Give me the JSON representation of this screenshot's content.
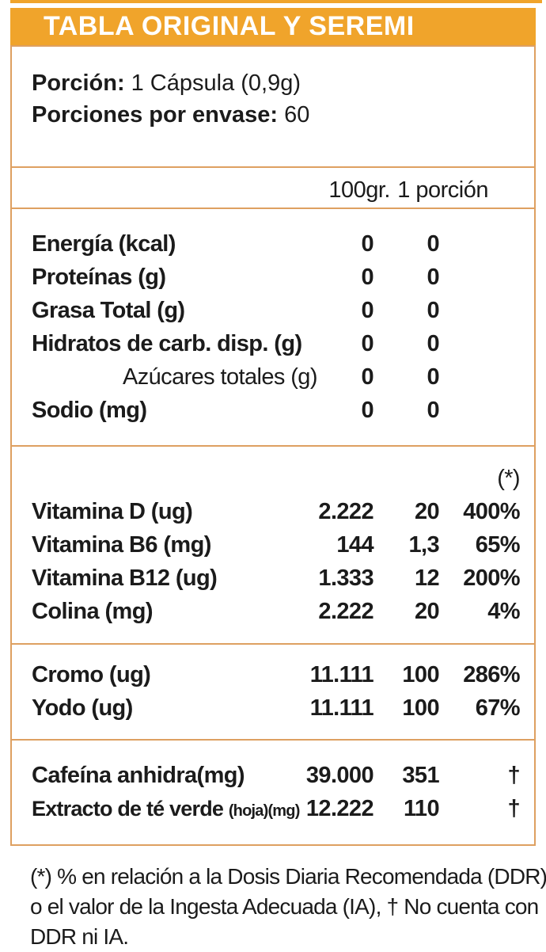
{
  "title": "TABLA ORIGINAL Y SEREMI",
  "serving": {
    "portion_label": "Porción:",
    "portion_value": "1 Cápsula (0,9g)",
    "servings_label": "Porciones por envase:",
    "servings_value": "60"
  },
  "columns": {
    "per_100": "100gr.",
    "per_serving": "1 porción",
    "ddr_marker": "(*)"
  },
  "sections": [
    {
      "rows": [
        {
          "label": "Energía (kcal)",
          "per100": "0",
          "portion": "0",
          "pct": ""
        },
        {
          "label": "Proteínas (g)",
          "per100": "0",
          "portion": "0",
          "pct": ""
        },
        {
          "label": "Grasa Total (g)",
          "per100": "0",
          "portion": "0",
          "pct": ""
        },
        {
          "label": "Hidratos de carb. disp. (g)",
          "per100": "0",
          "portion": "0",
          "pct": ""
        },
        {
          "label": "Azúcares totales (g)",
          "per100": "0",
          "portion": "0",
          "pct": "",
          "indent": true
        },
        {
          "label": "Sodio (mg)",
          "per100": "0",
          "portion": "0",
          "pct": ""
        }
      ]
    },
    {
      "rows": [
        {
          "label": "",
          "per100": "",
          "portion": "",
          "pct": "(*)",
          "marker": true
        },
        {
          "label": "Vitamina D (ug)",
          "per100": "2.222",
          "portion": "20",
          "pct": "400%"
        },
        {
          "label": "Vitamina B6 (mg)",
          "per100": "144",
          "portion": "1,3",
          "pct": "65%"
        },
        {
          "label": "Vitamina B12 (ug)",
          "per100": "1.333",
          "portion": "12",
          "pct": "200%"
        },
        {
          "label": "Colina (mg)",
          "per100": "2.222",
          "portion": "20",
          "pct": "4%"
        }
      ]
    },
    {
      "rows": [
        {
          "label": "Cromo (ug)",
          "per100": "11.111",
          "portion": "100",
          "pct": "286%"
        },
        {
          "label": "Yodo (ug)",
          "per100": "11.111",
          "portion": "100",
          "pct": "67%"
        }
      ]
    },
    {
      "rows": [
        {
          "label": "Cafeína anhidra(mg)",
          "per100": "39.000",
          "portion": "351",
          "pct": "†"
        },
        {
          "label": "Extracto de té verde ",
          "label_small": "(hoja)(mg)",
          "per100": "12.222",
          "portion": "110",
          "pct": "†",
          "small_label": true
        }
      ]
    }
  ],
  "footnote_lines": [
    "(*) % en relación a la Dosis Diaria Recomendada (DDR)",
    "o el valor de la Ingesta Adecuada (IA), † No cuenta con",
    "DDR ni IA."
  ],
  "colors": {
    "header_orange": "#F0A42B",
    "rule_orange": "#DEA061",
    "text": "#1B1B1B",
    "title_text": "#FFFFFF"
  }
}
